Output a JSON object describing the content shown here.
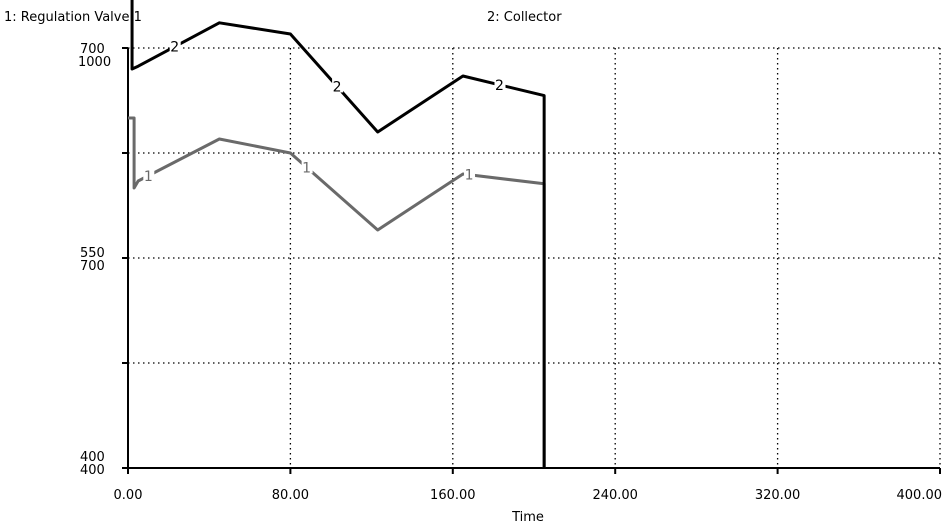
{
  "legend": {
    "series1": "1: Regulation  Valve 1",
    "series2": "2: Collector"
  },
  "chart_data": {
    "type": "line",
    "xlabel": "Time",
    "xlim": [
      0,
      400
    ],
    "x_tick_labels": [
      "0.00",
      "80.00",
      "160.00",
      "240.00",
      "320.00",
      "400.00"
    ],
    "y_axes": [
      {
        "series": 1,
        "ylim": [
          400,
          700
        ],
        "tick_labels": [
          "400",
          "550",
          "700"
        ]
      },
      {
        "series": 2,
        "ylim": [
          400,
          1000
        ],
        "tick_labels": [
          "400",
          "700",
          "1000"
        ]
      }
    ],
    "grid": true,
    "colors": {
      "series1": "#6a6a6a",
      "series2": "#000000",
      "grid": "#000000"
    },
    "series": [
      {
        "name": "1: Regulation  Valve 1",
        "marker": "1",
        "x": [
          0,
          3,
          3,
          5,
          45,
          80,
          123,
          165,
          205,
          205
        ],
        "y": [
          650,
          650,
          600,
          605,
          635,
          625,
          570,
          610,
          603,
          400
        ],
        "marker_x": [
          10,
          88,
          168
        ]
      },
      {
        "name": "2: Collector",
        "marker": "2",
        "x": [
          0,
          2,
          2,
          5,
          45,
          80,
          123,
          165,
          205,
          205
        ],
        "y": [
          745,
          740,
          685,
          687,
          718,
          710,
          640,
          680,
          666,
          400
        ],
        "marker_x": [
          23,
          103,
          183
        ]
      }
    ]
  }
}
